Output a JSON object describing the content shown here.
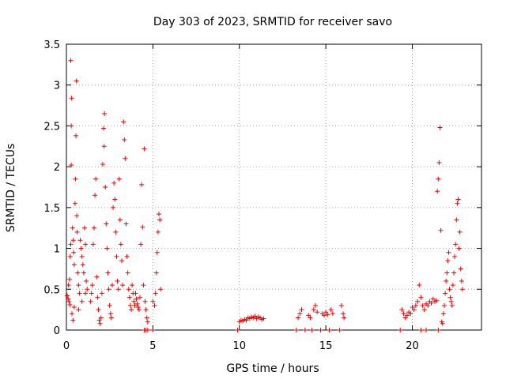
{
  "chart_data": {
    "type": "scatter",
    "title": "Day 303 of 2023, SRMTID for receiver savo",
    "xlabel": "GPS time / hours",
    "ylabel": "SRMTID / TECUs",
    "xlim": [
      0,
      24
    ],
    "ylim": [
      0,
      3.5
    ],
    "xticks": [
      0,
      5,
      10,
      15,
      20
    ],
    "yticks": [
      0,
      0.5,
      1,
      1.5,
      2,
      2.5,
      3,
      3.5
    ],
    "xtick_labels": [
      "0",
      "5",
      "10",
      "15",
      "20"
    ],
    "ytick_labels": [
      "0",
      "0.5",
      "1",
      "1.5",
      "2",
      "2.5",
      "3",
      "3.5"
    ],
    "grid": true,
    "marker": "+",
    "series": [
      {
        "name": "SRMTID",
        "color": "#ee0000",
        "points": [
          [
            0.05,
            0.42
          ],
          [
            0.1,
            0.38
          ],
          [
            0.15,
            0.35
          ],
          [
            0.2,
            0.31
          ],
          [
            0.12,
            0.55
          ],
          [
            0.18,
            0.62
          ],
          [
            0.22,
            0.9
          ],
          [
            0.25,
            1.05
          ],
          [
            0.28,
            2.5
          ],
          [
            0.25,
            3.3
          ],
          [
            0.3,
            2.84
          ],
          [
            0.28,
            2.02
          ],
          [
            0.35,
            1.25
          ],
          [
            0.4,
            1.1
          ],
          [
            0.42,
            0.95
          ],
          [
            0.45,
            0.8
          ],
          [
            0.5,
            1.55
          ],
          [
            0.52,
            1.85
          ],
          [
            0.55,
            2.38
          ],
          [
            0.58,
            3.05
          ],
          [
            0.6,
            1.4
          ],
          [
            0.62,
            1.2
          ],
          [
            0.65,
            0.7
          ],
          [
            0.7,
            0.55
          ],
          [
            0.75,
            0.45
          ],
          [
            0.8,
            1.1
          ],
          [
            0.85,
            1.0
          ],
          [
            0.9,
            0.9
          ],
          [
            0.95,
            0.8
          ],
          [
            1.0,
            0.7
          ],
          [
            1.05,
            1.25
          ],
          [
            1.1,
            1.05
          ],
          [
            1.15,
            0.6
          ],
          [
            1.2,
            0.5
          ],
          [
            0.32,
            0.2
          ],
          [
            0.38,
            0.12
          ],
          [
            0.45,
            0.28
          ],
          [
            0.7,
            0.25
          ],
          [
            0.9,
            0.35
          ],
          [
            1.1,
            0.45
          ],
          [
            1.4,
            0.35
          ],
          [
            1.45,
            0.45
          ],
          [
            1.5,
            0.55
          ],
          [
            1.55,
            1.05
          ],
          [
            1.6,
            1.25
          ],
          [
            1.65,
            1.65
          ],
          [
            1.7,
            1.85
          ],
          [
            1.75,
            0.65
          ],
          [
            1.8,
            0.4
          ],
          [
            1.85,
            0.25
          ],
          [
            1.9,
            0.12
          ],
          [
            1.95,
            0.08
          ],
          [
            2.0,
            0.15
          ],
          [
            2.05,
            0.45
          ],
          [
            2.1,
            2.03
          ],
          [
            2.15,
            2.47
          ],
          [
            2.2,
            2.65
          ],
          [
            2.18,
            2.25
          ],
          [
            2.25,
            1.75
          ],
          [
            2.3,
            1.3
          ],
          [
            2.35,
            1.0
          ],
          [
            2.4,
            0.7
          ],
          [
            2.45,
            0.5
          ],
          [
            2.5,
            0.3
          ],
          [
            2.55,
            0.2
          ],
          [
            2.6,
            0.15
          ],
          [
            2.65,
            0.55
          ],
          [
            2.7,
            1.5
          ],
          [
            2.75,
            1.8
          ],
          [
            2.8,
            1.6
          ],
          [
            2.85,
            1.2
          ],
          [
            2.9,
            0.9
          ],
          [
            2.95,
            0.6
          ],
          [
            3.0,
            0.5
          ],
          [
            3.05,
            1.85
          ],
          [
            3.1,
            1.35
          ],
          [
            3.15,
            1.05
          ],
          [
            3.2,
            0.85
          ],
          [
            3.25,
            0.55
          ],
          [
            3.3,
            2.55
          ],
          [
            3.35,
            2.33
          ],
          [
            3.4,
            2.1
          ],
          [
            3.45,
            1.3
          ],
          [
            3.5,
            0.9
          ],
          [
            3.55,
            0.7
          ],
          [
            3.6,
            0.5
          ],
          [
            3.65,
            0.4
          ],
          [
            3.7,
            0.3
          ],
          [
            3.75,
            0.25
          ],
          [
            3.8,
            0.55
          ],
          [
            3.85,
            0.45
          ],
          [
            3.9,
            0.35
          ],
          [
            3.95,
            0.3
          ],
          [
            4.0,
            0.45
          ],
          [
            4.05,
            0.38
          ],
          [
            4.1,
            0.32
          ],
          [
            4.15,
            0.28
          ],
          [
            4.2,
            0.25
          ],
          [
            4.25,
            0.4
          ],
          [
            4.3,
            1.05
          ],
          [
            4.35,
            1.78
          ],
          [
            4.4,
            1.26
          ],
          [
            4.45,
            0.55
          ],
          [
            4.5,
            2.22
          ],
          [
            4.55,
            0.35
          ],
          [
            4.6,
            0.25
          ],
          [
            4.65,
            0.15
          ],
          [
            4.7,
            0.1
          ],
          [
            5.1,
            0.3
          ],
          [
            5.15,
            0.45
          ],
          [
            5.2,
            0.7
          ],
          [
            5.25,
            0.95
          ],
          [
            5.3,
            1.2
          ],
          [
            5.35,
            1.42
          ],
          [
            5.4,
            1.35
          ],
          [
            5.45,
            0.5
          ],
          [
            5.0,
            0.35
          ],
          [
            4.5,
            0.0
          ],
          [
            4.6,
            0.0
          ],
          [
            4.7,
            0.0
          ],
          [
            5.0,
            0.0
          ],
          [
            9.9,
            0.0
          ],
          [
            10.0,
            0.1
          ],
          [
            10.1,
            0.12
          ],
          [
            10.2,
            0.11
          ],
          [
            10.3,
            0.13
          ],
          [
            10.4,
            0.12
          ],
          [
            10.5,
            0.15
          ],
          [
            10.6,
            0.14
          ],
          [
            10.7,
            0.16
          ],
          [
            10.8,
            0.15
          ],
          [
            10.9,
            0.17
          ],
          [
            11.0,
            0.14
          ],
          [
            11.1,
            0.16
          ],
          [
            11.2,
            0.15
          ],
          [
            11.3,
            0.13
          ],
          [
            11.4,
            0.14
          ],
          [
            13.3,
            0.0
          ],
          [
            13.4,
            0.15
          ],
          [
            13.5,
            0.2
          ],
          [
            13.6,
            0.25
          ],
          [
            13.8,
            0.0
          ],
          [
            14.0,
            0.18
          ],
          [
            14.1,
            0.15
          ],
          [
            14.2,
            0.0
          ],
          [
            14.3,
            0.25
          ],
          [
            14.4,
            0.3
          ],
          [
            14.5,
            0.22
          ],
          [
            14.7,
            0.0
          ],
          [
            14.8,
            0.2
          ],
          [
            14.9,
            0.18
          ],
          [
            15.0,
            0.22
          ],
          [
            15.1,
            0.19
          ],
          [
            15.2,
            0.0
          ],
          [
            15.3,
            0.25
          ],
          [
            15.4,
            0.2
          ],
          [
            15.8,
            0.0
          ],
          [
            15.9,
            0.3
          ],
          [
            16.0,
            0.2
          ],
          [
            16.05,
            0.15
          ],
          [
            19.3,
            0.0
          ],
          [
            19.4,
            0.25
          ],
          [
            19.5,
            0.2
          ],
          [
            19.6,
            0.15
          ],
          [
            19.7,
            0.18
          ],
          [
            19.8,
            0.22
          ],
          [
            19.9,
            0.2
          ],
          [
            20.0,
            0.28
          ],
          [
            20.1,
            0.25
          ],
          [
            20.2,
            0.3
          ],
          [
            20.3,
            0.35
          ],
          [
            20.4,
            0.55
          ],
          [
            20.5,
            0.4
          ],
          [
            20.6,
            0.3
          ],
          [
            20.7,
            0.25
          ],
          [
            20.8,
            0.32
          ],
          [
            20.9,
            0.3
          ],
          [
            21.0,
            0.35
          ],
          [
            21.1,
            0.33
          ],
          [
            21.2,
            0.38
          ],
          [
            21.3,
            0.35
          ],
          [
            21.4,
            0.36
          ],
          [
            21.45,
            1.7
          ],
          [
            21.5,
            1.85
          ],
          [
            21.55,
            2.05
          ],
          [
            21.6,
            2.48
          ],
          [
            21.65,
            1.22
          ],
          [
            21.7,
            0.1
          ],
          [
            21.75,
            0.08
          ],
          [
            21.8,
            0.2
          ],
          [
            21.85,
            0.3
          ],
          [
            21.9,
            0.45
          ],
          [
            21.95,
            0.6
          ],
          [
            22.0,
            0.7
          ],
          [
            22.05,
            0.85
          ],
          [
            22.1,
            0.95
          ],
          [
            22.15,
            0.5
          ],
          [
            22.2,
            0.4
          ],
          [
            22.25,
            0.35
          ],
          [
            22.3,
            0.3
          ],
          [
            22.35,
            0.55
          ],
          [
            22.4,
            0.7
          ],
          [
            22.45,
            0.9
          ],
          [
            22.5,
            1.05
          ],
          [
            22.55,
            1.35
          ],
          [
            22.6,
            1.55
          ],
          [
            22.65,
            1.6
          ],
          [
            22.7,
            1.0
          ],
          [
            22.75,
            1.2
          ],
          [
            22.8,
            0.75
          ],
          [
            22.85,
            0.6
          ],
          [
            22.9,
            0.5
          ],
          [
            20.5,
            0.0
          ],
          [
            20.8,
            0.0
          ],
          [
            21.5,
            0.0
          ]
        ]
      }
    ]
  }
}
